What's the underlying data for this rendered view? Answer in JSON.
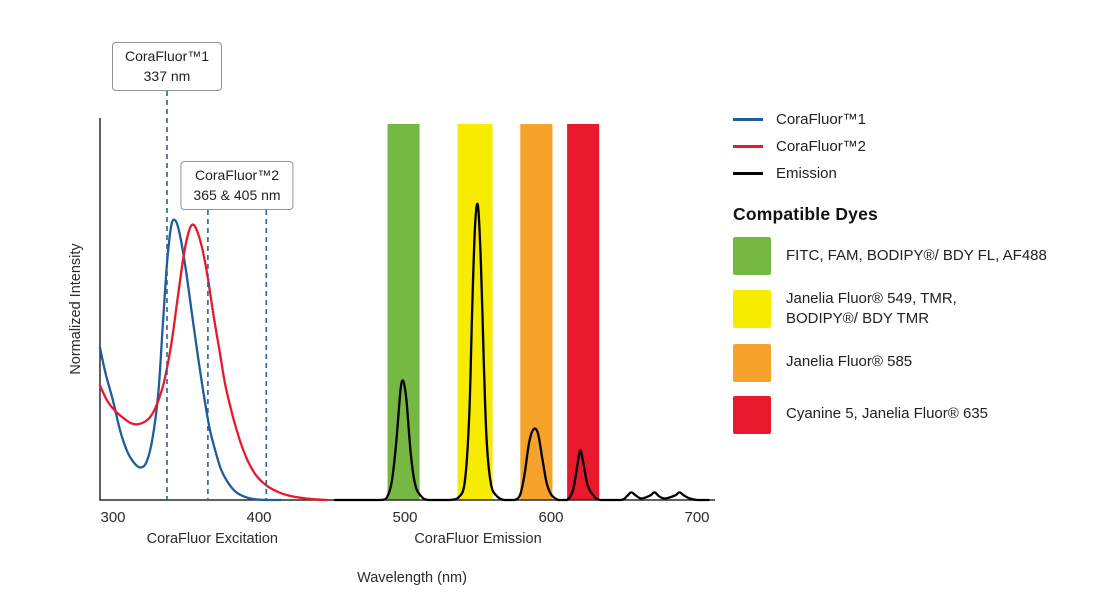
{
  "chart_data": {
    "type": "line",
    "title": "",
    "xlabel": "Wavelength (nm)",
    "ylabel": "Normalized Intensity",
    "xlim": [
      300,
      700
    ],
    "ylim": [
      0,
      1
    ],
    "x_ticks": [
      300,
      400,
      500,
      600,
      700
    ],
    "grid": false,
    "legend_position": "right",
    "annotation_color": "#2A6099",
    "axis_annotations": [
      {
        "label": "CoraFluor Excitation",
        "x": 368
      },
      {
        "label": "CoraFluor Emission",
        "x": 550
      }
    ],
    "callouts": [
      {
        "title": "CoraFluor™1",
        "value": "337 nm",
        "lines_nm": [
          337
        ]
      },
      {
        "title": "CoraFluor™2",
        "value": "365 & 405 nm",
        "lines_nm": [
          365,
          405
        ]
      }
    ],
    "bands": [
      {
        "name": "green",
        "color": "#76B843",
        "from": 488,
        "to": 510
      },
      {
        "name": "yellow",
        "color": "#F7EB00",
        "from": 536,
        "to": 560
      },
      {
        "name": "orange",
        "color": "#F6A22B",
        "from": 579,
        "to": 601
      },
      {
        "name": "red",
        "color": "#E8192D",
        "from": 611,
        "to": 633
      }
    ],
    "series": [
      {
        "key": "corafluor1",
        "name": "CoraFluor™1",
        "color": "#1F5C99",
        "points": [
          [
            291,
            0.4
          ],
          [
            295,
            0.33
          ],
          [
            300,
            0.26
          ],
          [
            305,
            0.18
          ],
          [
            310,
            0.125
          ],
          [
            315,
            0.095
          ],
          [
            319,
            0.085
          ],
          [
            323,
            0.1
          ],
          [
            327,
            0.16
          ],
          [
            331,
            0.28
          ],
          [
            334,
            0.45
          ],
          [
            337,
            0.62
          ],
          [
            340,
            0.72
          ],
          [
            343,
            0.73
          ],
          [
            346,
            0.69
          ],
          [
            350,
            0.6
          ],
          [
            354,
            0.49
          ],
          [
            358,
            0.38
          ],
          [
            362,
            0.28
          ],
          [
            366,
            0.19
          ],
          [
            370,
            0.13
          ],
          [
            374,
            0.08
          ],
          [
            378,
            0.05
          ],
          [
            383,
            0.025
          ],
          [
            388,
            0.012
          ],
          [
            394,
            0.004
          ],
          [
            400,
            0.001
          ],
          [
            407,
            0
          ],
          [
            415,
            0
          ]
        ]
      },
      {
        "key": "corafluor2",
        "name": "CoraFluor™2",
        "color": "#E8192D",
        "points": [
          [
            291,
            0.3
          ],
          [
            296,
            0.26
          ],
          [
            301,
            0.235
          ],
          [
            307,
            0.215
          ],
          [
            313,
            0.2
          ],
          [
            319,
            0.2
          ],
          [
            325,
            0.215
          ],
          [
            330,
            0.25
          ],
          [
            335,
            0.31
          ],
          [
            340,
            0.41
          ],
          [
            344,
            0.52
          ],
          [
            348,
            0.63
          ],
          [
            351,
            0.69
          ],
          [
            354,
            0.72
          ],
          [
            357,
            0.71
          ],
          [
            361,
            0.66
          ],
          [
            365,
            0.58
          ],
          [
            369,
            0.48
          ],
          [
            373,
            0.39
          ],
          [
            377,
            0.3
          ],
          [
            382,
            0.22
          ],
          [
            387,
            0.155
          ],
          [
            392,
            0.105
          ],
          [
            397,
            0.07
          ],
          [
            402,
            0.048
          ],
          [
            407,
            0.033
          ],
          [
            413,
            0.021
          ],
          [
            420,
            0.012
          ],
          [
            428,
            0.006
          ],
          [
            437,
            0.002
          ],
          [
            447,
            0
          ]
        ]
      },
      {
        "key": "emission",
        "name": "Emission",
        "color": "#000000",
        "points": [
          [
            452,
            0
          ],
          [
            470,
            0
          ],
          [
            484,
            0
          ],
          [
            488,
            0.01
          ],
          [
            491,
            0.05
          ],
          [
            494,
            0.15
          ],
          [
            497,
            0.29
          ],
          [
            499,
            0.31
          ],
          [
            501,
            0.26
          ],
          [
            504,
            0.12
          ],
          [
            507,
            0.04
          ],
          [
            511,
            0.01
          ],
          [
            516,
            0
          ],
          [
            530,
            0
          ],
          [
            537,
            0.008
          ],
          [
            541,
            0.05
          ],
          [
            544,
            0.22
          ],
          [
            546,
            0.5
          ],
          [
            548,
            0.72
          ],
          [
            550,
            0.77
          ],
          [
            552,
            0.62
          ],
          [
            554,
            0.36
          ],
          [
            556,
            0.15
          ],
          [
            559,
            0.04
          ],
          [
            563,
            0.01
          ],
          [
            568,
            0
          ],
          [
            575,
            0
          ],
          [
            579,
            0.015
          ],
          [
            582,
            0.07
          ],
          [
            585,
            0.15
          ],
          [
            588,
            0.185
          ],
          [
            591,
            0.175
          ],
          [
            594,
            0.11
          ],
          [
            597,
            0.045
          ],
          [
            600,
            0.015
          ],
          [
            605,
            0
          ],
          [
            611,
            0
          ],
          [
            615,
            0.025
          ],
          [
            618,
            0.09
          ],
          [
            620,
            0.13
          ],
          [
            622,
            0.1
          ],
          [
            625,
            0.04
          ],
          [
            629,
            0.012
          ],
          [
            634,
            0
          ],
          [
            648,
            0
          ],
          [
            652,
            0.01
          ],
          [
            655,
            0.02
          ],
          [
            658,
            0.012
          ],
          [
            662,
            0.004
          ],
          [
            668,
            0.012
          ],
          [
            671,
            0.02
          ],
          [
            674,
            0.01
          ],
          [
            678,
            0.004
          ],
          [
            685,
            0.012
          ],
          [
            688,
            0.02
          ],
          [
            691,
            0.012
          ],
          [
            695,
            0.004
          ],
          [
            700,
            0
          ],
          [
            708,
            0
          ]
        ]
      }
    ]
  },
  "legend": {
    "series": [
      {
        "label": "CoraFluor™1",
        "color": "#1F5C99"
      },
      {
        "label": "CoraFluor™2",
        "color": "#E8192D"
      },
      {
        "label": "Emission",
        "color": "#000000"
      }
    ],
    "dyes_title": "Compatible Dyes",
    "dyes": [
      {
        "color": "#76B843",
        "label": "FITC, FAM, BODIPY®/ BDY FL, AF488",
        "label2": ""
      },
      {
        "color": "#F7EB00",
        "label": "Janelia Fluor® 549, TMR,",
        "label2": "BODIPY®/ BDY TMR"
      },
      {
        "color": "#F6A22B",
        "label": "Janelia Fluor® 585",
        "label2": ""
      },
      {
        "color": "#E8192D",
        "label": "Cyanine 5, Janelia Fluor® 635",
        "label2": ""
      }
    ]
  }
}
